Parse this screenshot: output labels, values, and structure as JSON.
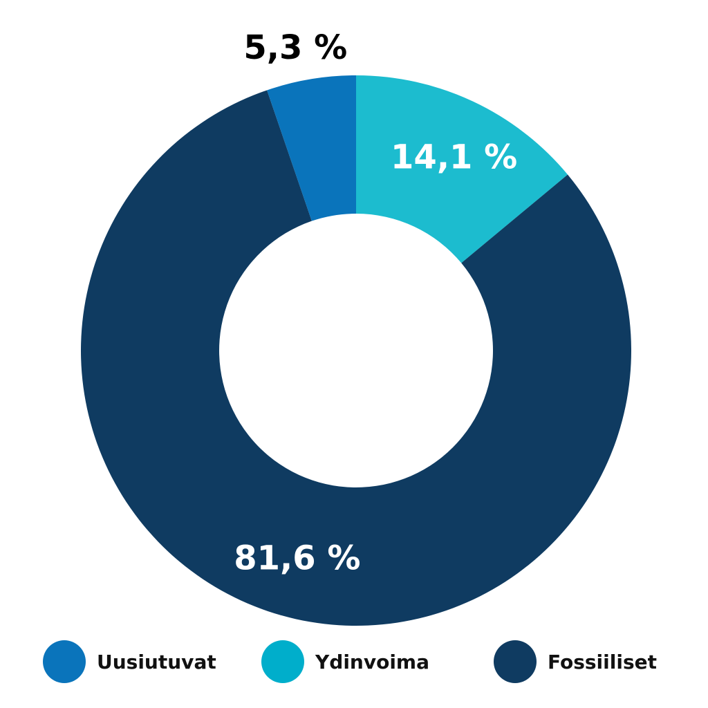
{
  "chart_data": {
    "type": "pie",
    "title": "",
    "donut": true,
    "legend_position": "bottom",
    "slices": [
      {
        "name": "Ydinvoima",
        "value": 14.1,
        "label": "14,1 %",
        "color": "#1cbccf",
        "label_color": "#ffffff"
      },
      {
        "name": "Fossiiliset",
        "value": 81.6,
        "label": "81,6 %",
        "color": "#0f3b61",
        "label_color": "#ffffff"
      },
      {
        "name": "Uusiutuvat",
        "value": 5.3,
        "label": "5,3 %",
        "color": "#0a74bb",
        "label_color": "#000000"
      }
    ],
    "legend": [
      {
        "name": "Uusiutuvat",
        "color": "#0a74bb"
      },
      {
        "name": "Ydinvoima",
        "color": "#00aecb"
      },
      {
        "name": "Fossiiliset",
        "color": "#0f3b61"
      }
    ]
  }
}
